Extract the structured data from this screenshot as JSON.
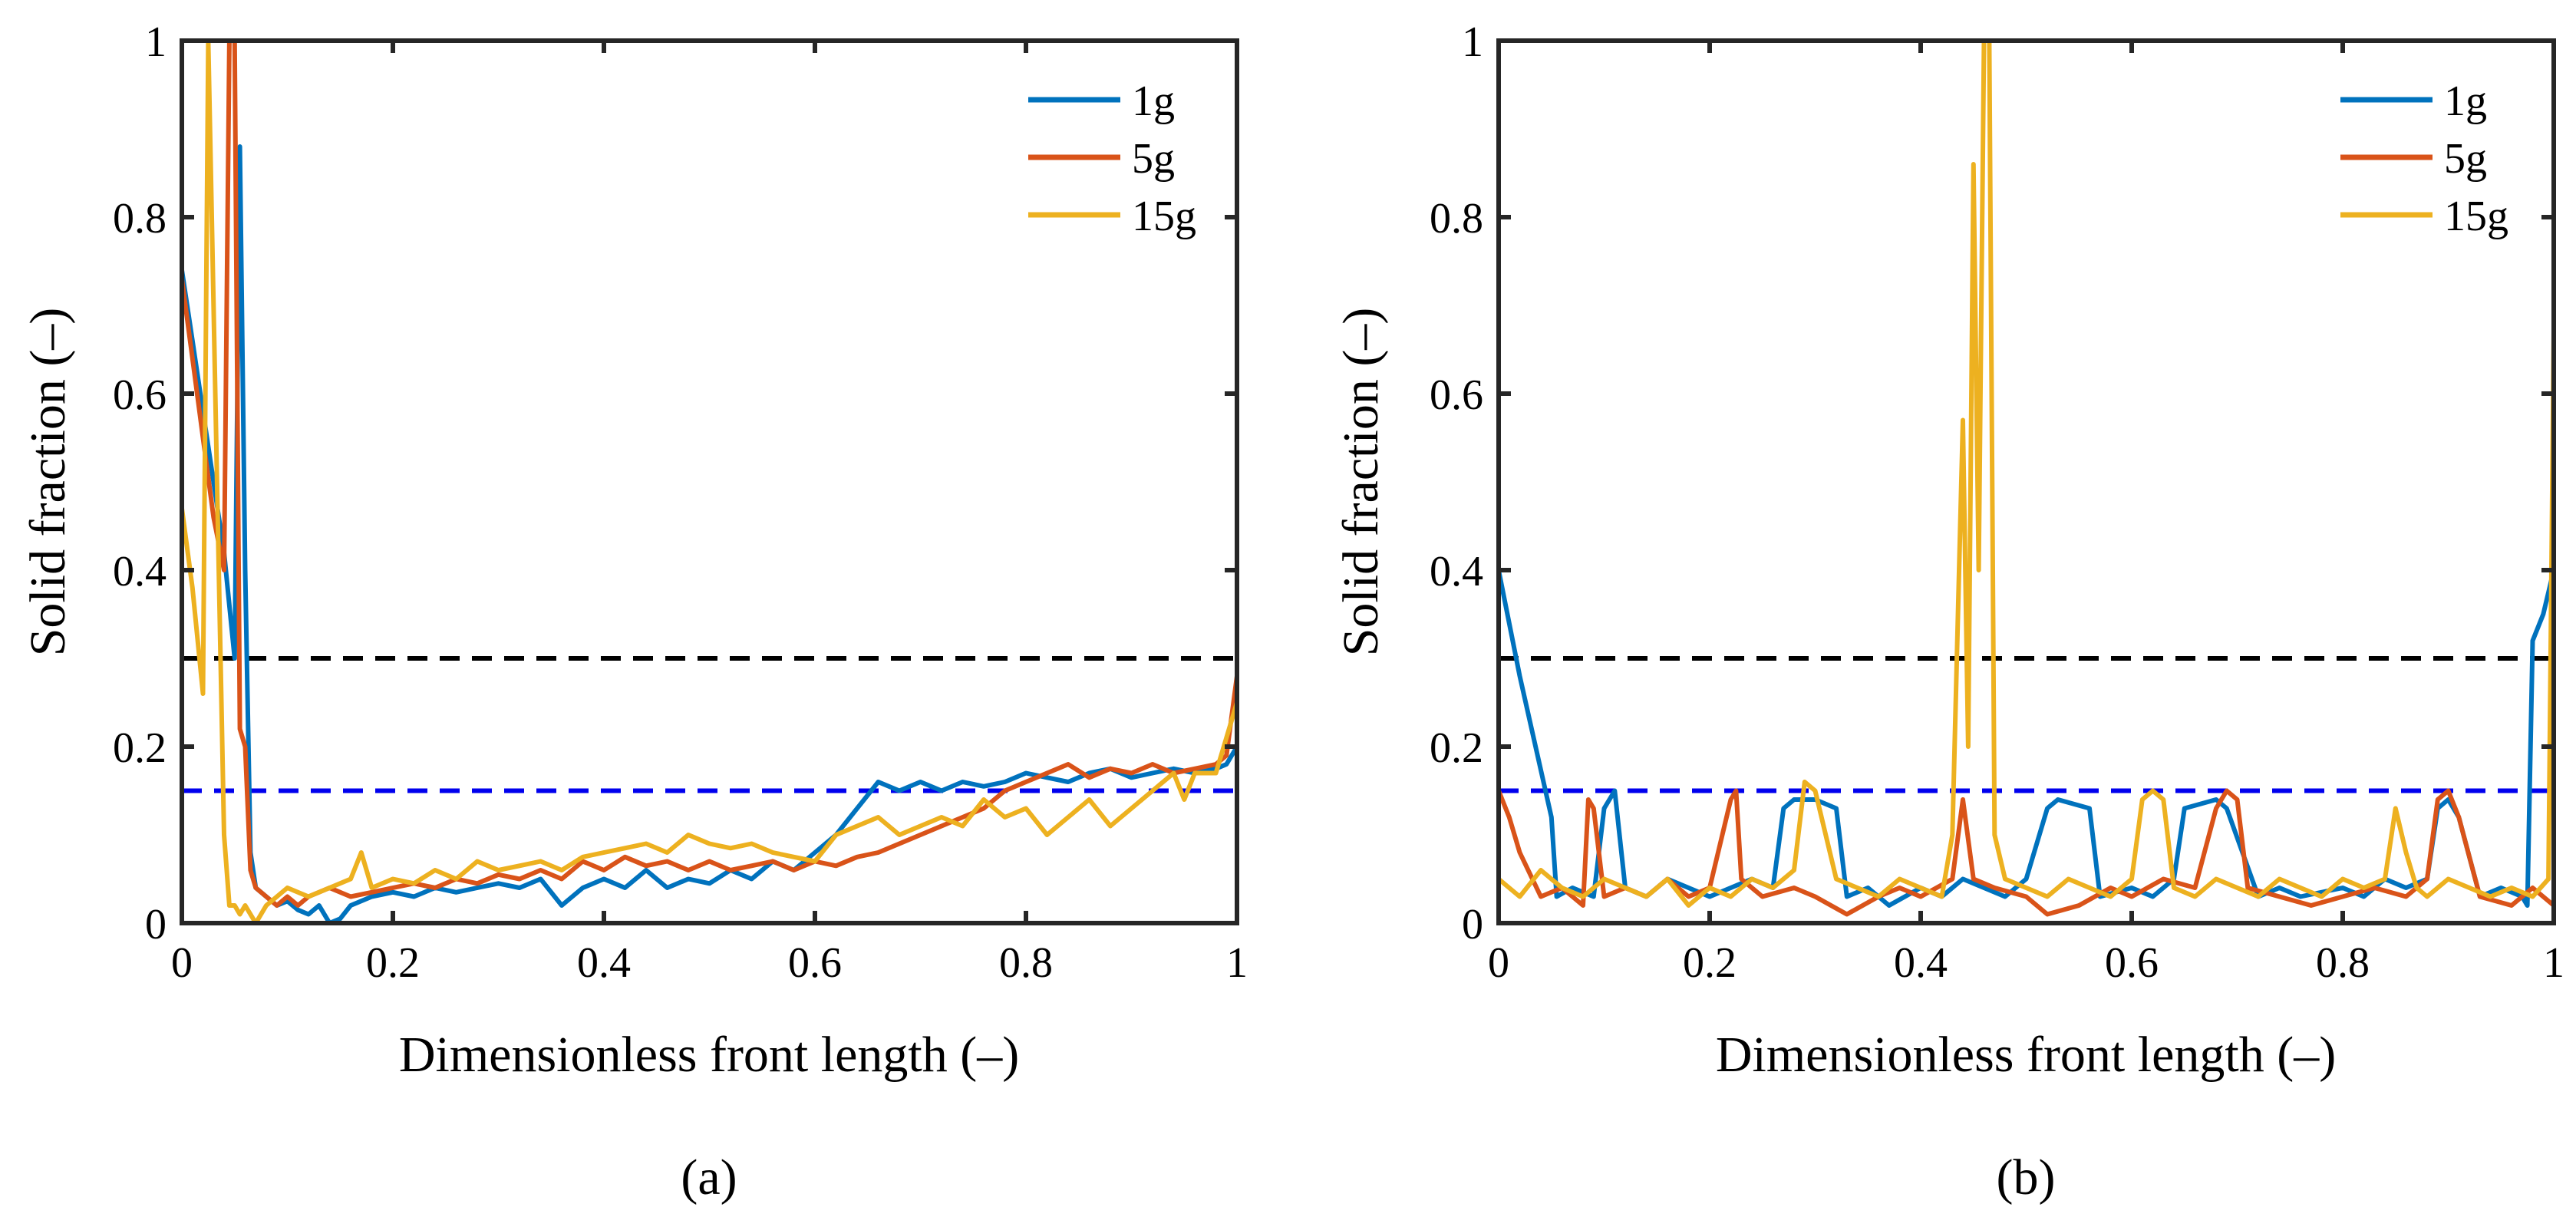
{
  "chart_data": [
    {
      "type": "line",
      "panel_label": "(a)",
      "xlabel": "Dimensionless front length (–)",
      "ylabel": "Solid fraction (–)",
      "xlim": [
        0,
        1
      ],
      "ylim": [
        0,
        1
      ],
      "xticks": [
        "0",
        "0.2",
        "0.4",
        "0.6",
        "0.8",
        "1"
      ],
      "yticks": [
        "0",
        "0.2",
        "0.4",
        "0.6",
        "0.8",
        "1"
      ],
      "xtick_values": [
        0,
        0.2,
        0.4,
        0.6,
        0.8,
        1
      ],
      "ytick_values": [
        0,
        0.2,
        0.4,
        0.6,
        0.8,
        1
      ],
      "legend": [
        "1g",
        "5g",
        "15g"
      ],
      "hlines": [
        {
          "y": 0.3,
          "color": "#000000",
          "style": "dashed"
        },
        {
          "y": 0.15,
          "color": "#0000ee",
          "style": "dashed"
        }
      ],
      "series": [
        {
          "name": "1g",
          "color": "#0072BD",
          "x": [
            0,
            0.01,
            0.02,
            0.03,
            0.04,
            0.05,
            0.055,
            0.06,
            0.065,
            0.07,
            0.08,
            0.09,
            0.1,
            0.11,
            0.12,
            0.13,
            0.14,
            0.15,
            0.16,
            0.18,
            0.2,
            0.22,
            0.24,
            0.26,
            0.28,
            0.3,
            0.32,
            0.34,
            0.36,
            0.38,
            0.4,
            0.42,
            0.44,
            0.46,
            0.48,
            0.5,
            0.52,
            0.54,
            0.56,
            0.58,
            0.6,
            0.62,
            0.64,
            0.66,
            0.68,
            0.7,
            0.72,
            0.74,
            0.76,
            0.78,
            0.8,
            0.82,
            0.84,
            0.86,
            0.88,
            0.9,
            0.92,
            0.94,
            0.96,
            0.98,
            0.99,
            1
          ],
          "y": [
            0.74,
            0.66,
            0.58,
            0.5,
            0.42,
            0.3,
            0.88,
            0.4,
            0.08,
            0.04,
            0.03,
            0.02,
            0.025,
            0.015,
            0.01,
            0.02,
            0.0,
            0.005,
            0.02,
            0.03,
            0.035,
            0.03,
            0.04,
            0.035,
            0.04,
            0.045,
            0.04,
            0.05,
            0.02,
            0.04,
            0.05,
            0.04,
            0.06,
            0.04,
            0.05,
            0.045,
            0.06,
            0.05,
            0.07,
            0.06,
            0.08,
            0.1,
            0.13,
            0.16,
            0.15,
            0.16,
            0.15,
            0.16,
            0.155,
            0.16,
            0.17,
            0.165,
            0.16,
            0.17,
            0.175,
            0.165,
            0.17,
            0.175,
            0.17,
            0.175,
            0.18,
            0.2
          ]
        },
        {
          "name": "5g",
          "color": "#D95319",
          "x": [
            0,
            0.01,
            0.02,
            0.03,
            0.04,
            0.045,
            0.05,
            0.055,
            0.06,
            0.065,
            0.07,
            0.08,
            0.09,
            0.1,
            0.11,
            0.12,
            0.14,
            0.16,
            0.18,
            0.2,
            0.22,
            0.24,
            0.26,
            0.28,
            0.3,
            0.32,
            0.34,
            0.36,
            0.38,
            0.4,
            0.42,
            0.44,
            0.46,
            0.48,
            0.5,
            0.52,
            0.54,
            0.56,
            0.58,
            0.6,
            0.62,
            0.64,
            0.66,
            0.68,
            0.7,
            0.72,
            0.74,
            0.76,
            0.78,
            0.8,
            0.82,
            0.84,
            0.86,
            0.88,
            0.9,
            0.92,
            0.94,
            0.96,
            0.98,
            0.99,
            1
          ],
          "y": [
            0.73,
            0.64,
            0.55,
            0.46,
            0.4,
            1.0,
            1.0,
            0.22,
            0.2,
            0.06,
            0.04,
            0.03,
            0.02,
            0.03,
            0.02,
            0.03,
            0.04,
            0.03,
            0.035,
            0.04,
            0.045,
            0.04,
            0.05,
            0.045,
            0.055,
            0.05,
            0.06,
            0.05,
            0.07,
            0.06,
            0.075,
            0.065,
            0.07,
            0.06,
            0.07,
            0.06,
            0.065,
            0.07,
            0.06,
            0.07,
            0.065,
            0.075,
            0.08,
            0.09,
            0.1,
            0.11,
            0.12,
            0.13,
            0.15,
            0.16,
            0.17,
            0.18,
            0.165,
            0.175,
            0.17,
            0.18,
            0.17,
            0.175,
            0.18,
            0.19,
            0.28
          ]
        },
        {
          "name": "15g",
          "color": "#EDB120",
          "x": [
            0,
            0.01,
            0.02,
            0.025,
            0.03,
            0.035,
            0.04,
            0.045,
            0.05,
            0.055,
            0.06,
            0.07,
            0.08,
            0.09,
            0.1,
            0.12,
            0.14,
            0.16,
            0.17,
            0.18,
            0.2,
            0.22,
            0.24,
            0.26,
            0.28,
            0.3,
            0.32,
            0.34,
            0.36,
            0.38,
            0.4,
            0.42,
            0.44,
            0.46,
            0.48,
            0.5,
            0.52,
            0.54,
            0.56,
            0.58,
            0.6,
            0.62,
            0.64,
            0.66,
            0.68,
            0.7,
            0.72,
            0.74,
            0.76,
            0.78,
            0.8,
            0.82,
            0.84,
            0.86,
            0.88,
            0.9,
            0.92,
            0.94,
            0.95,
            0.96,
            0.98,
            1
          ],
          "y": [
            0.47,
            0.38,
            0.26,
            1.0,
            0.7,
            0.4,
            0.1,
            0.02,
            0.02,
            0.01,
            0.02,
            0.0,
            0.02,
            0.03,
            0.04,
            0.03,
            0.04,
            0.05,
            0.08,
            0.04,
            0.05,
            0.045,
            0.06,
            0.05,
            0.07,
            0.06,
            0.065,
            0.07,
            0.06,
            0.075,
            0.08,
            0.085,
            0.09,
            0.08,
            0.1,
            0.09,
            0.085,
            0.09,
            0.08,
            0.075,
            0.07,
            0.1,
            0.11,
            0.12,
            0.1,
            0.11,
            0.12,
            0.11,
            0.14,
            0.12,
            0.13,
            0.1,
            0.12,
            0.14,
            0.11,
            0.13,
            0.15,
            0.17,
            0.14,
            0.17,
            0.17,
            0.25
          ]
        }
      ]
    },
    {
      "type": "line",
      "panel_label": "(b)",
      "xlabel": "Dimensionless front length (–)",
      "ylabel": "Solid fraction (–)",
      "xlim": [
        0,
        1
      ],
      "ylim": [
        0,
        1
      ],
      "xticks": [
        "0",
        "0.2",
        "0.4",
        "0.6",
        "0.8",
        "1"
      ],
      "yticks": [
        "0",
        "0.2",
        "0.4",
        "0.6",
        "0.8",
        "1"
      ],
      "xtick_values": [
        0,
        0.2,
        0.4,
        0.6,
        0.8,
        1
      ],
      "ytick_values": [
        0,
        0.2,
        0.4,
        0.6,
        0.8,
        1
      ],
      "legend": [
        "1g",
        "5g",
        "15g"
      ],
      "hlines": [
        {
          "y": 0.3,
          "color": "#000000",
          "style": "dashed"
        },
        {
          "y": 0.15,
          "color": "#0000ee",
          "style": "dashed"
        }
      ],
      "series": [
        {
          "name": "1g",
          "color": "#0072BD",
          "x": [
            0,
            0.02,
            0.05,
            0.055,
            0.07,
            0.09,
            0.1,
            0.11,
            0.12,
            0.14,
            0.16,
            0.18,
            0.2,
            0.22,
            0.24,
            0.26,
            0.27,
            0.28,
            0.3,
            0.32,
            0.33,
            0.35,
            0.37,
            0.4,
            0.42,
            0.44,
            0.46,
            0.48,
            0.5,
            0.52,
            0.53,
            0.56,
            0.57,
            0.6,
            0.62,
            0.64,
            0.65,
            0.68,
            0.69,
            0.72,
            0.74,
            0.76,
            0.8,
            0.82,
            0.84,
            0.86,
            0.88,
            0.89,
            0.9,
            0.91,
            0.93,
            0.95,
            0.97,
            0.975,
            0.98,
            0.99,
            1
          ],
          "y": [
            0.4,
            0.28,
            0.12,
            0.03,
            0.04,
            0.03,
            0.13,
            0.15,
            0.04,
            0.03,
            0.05,
            0.04,
            0.03,
            0.04,
            0.05,
            0.04,
            0.13,
            0.14,
            0.14,
            0.13,
            0.03,
            0.04,
            0.02,
            0.04,
            0.03,
            0.05,
            0.04,
            0.03,
            0.05,
            0.13,
            0.14,
            0.13,
            0.03,
            0.04,
            0.03,
            0.05,
            0.13,
            0.14,
            0.13,
            0.03,
            0.04,
            0.03,
            0.04,
            0.03,
            0.05,
            0.04,
            0.05,
            0.13,
            0.14,
            0.12,
            0.03,
            0.04,
            0.03,
            0.02,
            0.32,
            0.35,
            0.4
          ]
        },
        {
          "name": "5g",
          "color": "#D95319",
          "x": [
            0,
            0.01,
            0.02,
            0.04,
            0.06,
            0.08,
            0.085,
            0.09,
            0.1,
            0.12,
            0.14,
            0.16,
            0.18,
            0.2,
            0.22,
            0.225,
            0.23,
            0.25,
            0.28,
            0.3,
            0.33,
            0.36,
            0.38,
            0.4,
            0.43,
            0.44,
            0.45,
            0.47,
            0.5,
            0.52,
            0.55,
            0.58,
            0.6,
            0.63,
            0.66,
            0.68,
            0.69,
            0.7,
            0.71,
            0.74,
            0.77,
            0.8,
            0.83,
            0.86,
            0.88,
            0.89,
            0.9,
            0.91,
            0.93,
            0.96,
            0.98,
            1
          ],
          "y": [
            0.15,
            0.12,
            0.08,
            0.03,
            0.04,
            0.02,
            0.14,
            0.13,
            0.03,
            0.04,
            0.03,
            0.05,
            0.03,
            0.04,
            0.14,
            0.15,
            0.05,
            0.03,
            0.04,
            0.03,
            0.01,
            0.03,
            0.04,
            0.03,
            0.05,
            0.14,
            0.05,
            0.04,
            0.03,
            0.01,
            0.02,
            0.04,
            0.03,
            0.05,
            0.04,
            0.13,
            0.15,
            0.14,
            0.04,
            0.03,
            0.02,
            0.03,
            0.04,
            0.03,
            0.05,
            0.14,
            0.15,
            0.12,
            0.03,
            0.02,
            0.04,
            0.02
          ]
        },
        {
          "name": "15g",
          "color": "#EDB120",
          "x": [
            0,
            0.02,
            0.04,
            0.06,
            0.08,
            0.1,
            0.12,
            0.14,
            0.16,
            0.18,
            0.2,
            0.22,
            0.24,
            0.26,
            0.28,
            0.29,
            0.3,
            0.32,
            0.34,
            0.36,
            0.38,
            0.4,
            0.42,
            0.43,
            0.44,
            0.445,
            0.45,
            0.455,
            0.46,
            0.465,
            0.47,
            0.48,
            0.5,
            0.52,
            0.54,
            0.56,
            0.58,
            0.6,
            0.61,
            0.62,
            0.63,
            0.64,
            0.66,
            0.68,
            0.7,
            0.72,
            0.74,
            0.76,
            0.78,
            0.8,
            0.82,
            0.84,
            0.85,
            0.86,
            0.87,
            0.88,
            0.9,
            0.92,
            0.94,
            0.96,
            0.98,
            0.995,
            1
          ],
          "y": [
            0.05,
            0.03,
            0.06,
            0.04,
            0.03,
            0.05,
            0.04,
            0.03,
            0.05,
            0.02,
            0.04,
            0.03,
            0.05,
            0.04,
            0.06,
            0.16,
            0.15,
            0.05,
            0.04,
            0.03,
            0.05,
            0.04,
            0.03,
            0.1,
            0.57,
            0.2,
            0.86,
            0.4,
            1.0,
            1.0,
            0.1,
            0.05,
            0.04,
            0.03,
            0.05,
            0.04,
            0.03,
            0.05,
            0.14,
            0.15,
            0.14,
            0.04,
            0.03,
            0.05,
            0.04,
            0.03,
            0.05,
            0.04,
            0.03,
            0.05,
            0.04,
            0.05,
            0.13,
            0.08,
            0.04,
            0.03,
            0.05,
            0.04,
            0.03,
            0.04,
            0.03,
            0.05,
            0.67
          ]
        }
      ]
    }
  ]
}
